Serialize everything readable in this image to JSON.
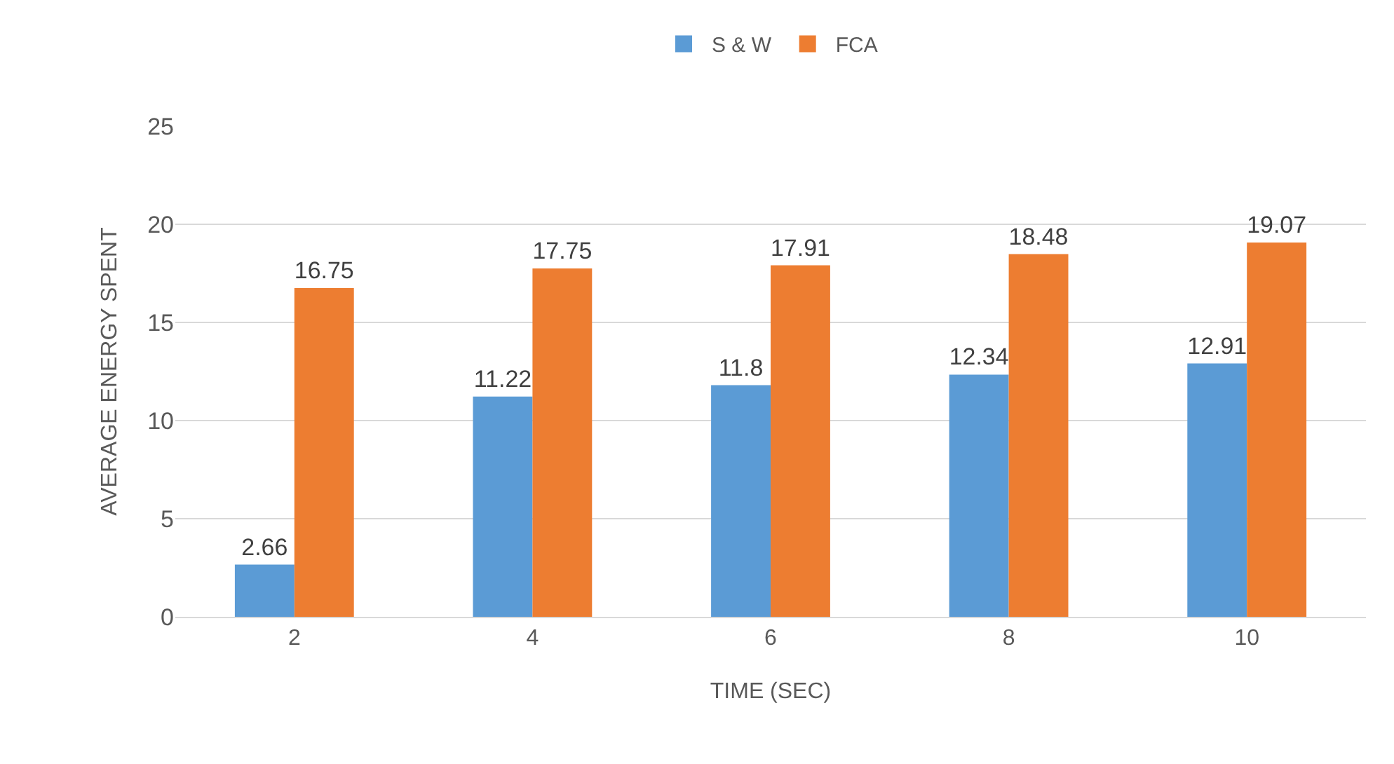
{
  "chart_data": {
    "type": "bar",
    "xlabel": "TIME (SEC)",
    "ylabel": "AVERAGE ENERGY SPENT",
    "categories": [
      "2",
      "4",
      "6",
      "8",
      "10"
    ],
    "series": [
      {
        "name": "S & W",
        "color": "#5b9bd5",
        "values": [
          2.66,
          11.22,
          11.8,
          12.34,
          12.91
        ]
      },
      {
        "name": "FCA",
        "color": "#ed7d31",
        "values": [
          16.75,
          17.75,
          17.91,
          18.48,
          19.07
        ]
      }
    ],
    "ylim": [
      0,
      25
    ],
    "yticks": [
      0,
      5,
      10,
      15,
      20,
      25
    ],
    "grid": "y",
    "legend": "top",
    "data_labels": true
  }
}
